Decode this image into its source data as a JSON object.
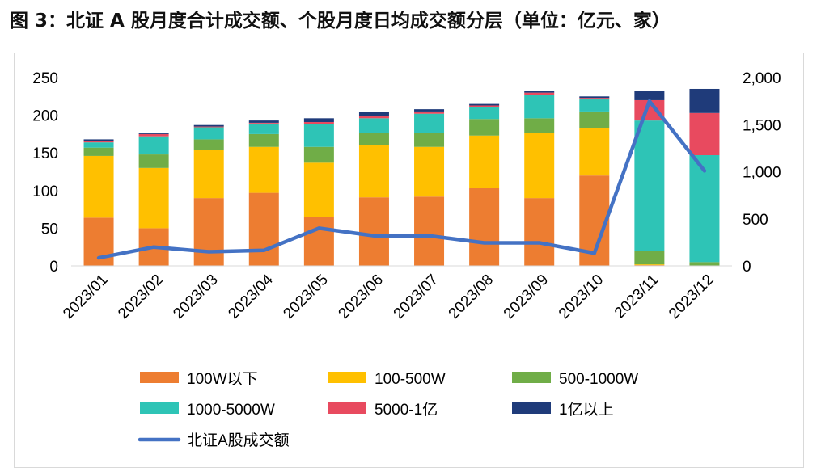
{
  "title": "图 3：北证 A 股月度合计成交额、个股月度日均成交额分层（单位：亿元、家）",
  "chart_data": {
    "type": "bar",
    "categories": [
      "2023/01",
      "2023/02",
      "2023/03",
      "2023/04",
      "2023/05",
      "2023/06",
      "2023/07",
      "2023/08",
      "2023/09",
      "2023/10",
      "2023/11",
      "2023/12"
    ],
    "series": [
      {
        "name": "100W以下",
        "color": "#ED7D31",
        "values": [
          64,
          50,
          90,
          97,
          65,
          91,
          92,
          103,
          90,
          120,
          1,
          0
        ]
      },
      {
        "name": "100-500W",
        "color": "#FFC000",
        "values": [
          82,
          80,
          64,
          61,
          72,
          69,
          66,
          70,
          86,
          63,
          1,
          0
        ]
      },
      {
        "name": "500-1000W",
        "color": "#70AD47",
        "values": [
          11,
          18,
          14,
          17,
          21,
          17,
          19,
          22,
          20,
          22,
          18,
          5
        ]
      },
      {
        "name": "1000-5000W",
        "color": "#2EC4B6",
        "values": [
          7,
          24,
          16,
          14,
          30,
          19,
          25,
          16,
          31,
          16,
          173,
          142
        ]
      },
      {
        "name": "5000-1亿",
        "color": "#E84A5F",
        "values": [
          2,
          3,
          1,
          1,
          3,
          3,
          3,
          2,
          3,
          2,
          27,
          56
        ]
      },
      {
        "name": "1亿以上",
        "color": "#1F3B7A",
        "values": [
          2,
          2,
          2,
          3,
          5,
          5,
          3,
          2,
          2,
          2,
          12,
          32
        ]
      }
    ],
    "line": {
      "name": "北证A股成交额",
      "color": "#4472C4",
      "values": [
        85,
        200,
        150,
        165,
        400,
        320,
        320,
        245,
        245,
        135,
        1750,
        1010
      ]
    },
    "left_axis": {
      "min": 0,
      "max": 250,
      "ticks": [
        "0",
        "50",
        "100",
        "150",
        "200",
        "250"
      ]
    },
    "right_axis": {
      "min": 0,
      "max": 2000,
      "ticks": [
        "0",
        "500",
        "1,000",
        "1,500",
        "2,000"
      ]
    },
    "grid": false,
    "legend_position": "bottom"
  }
}
